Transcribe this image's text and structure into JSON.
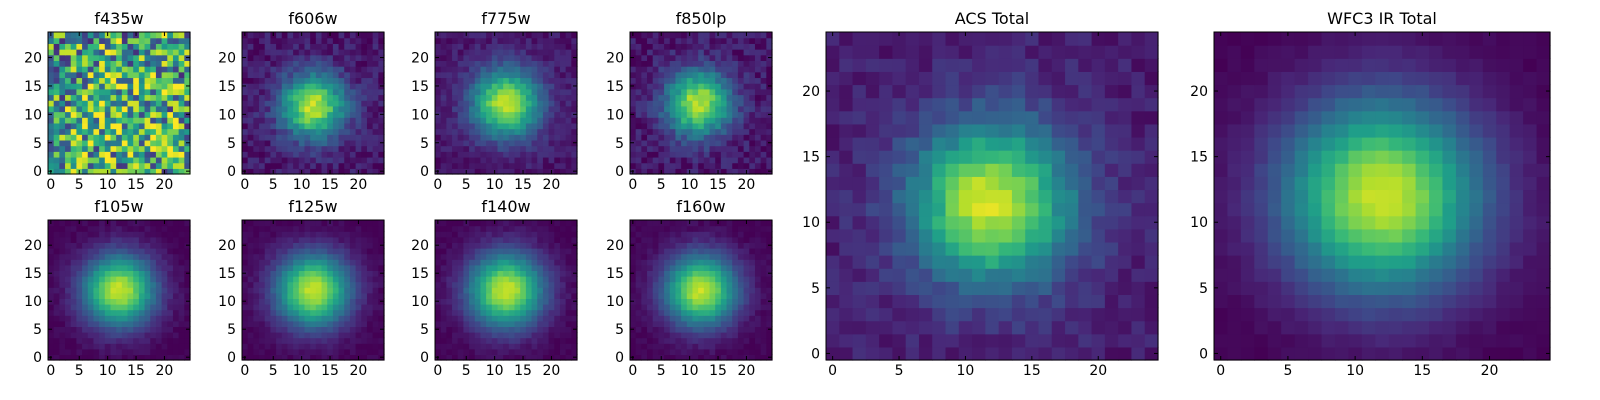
{
  "figure": {
    "colormap": "viridis",
    "colormap_stops": [
      "#440154",
      "#482878",
      "#3e4989",
      "#31688e",
      "#26828e",
      "#1f9e89",
      "#35b779",
      "#6ece58",
      "#b5de2b",
      "#fde725"
    ],
    "background_color": "#ffffff"
  },
  "chart_data": [
    {
      "type": "heatmap",
      "title": "f435w",
      "grid_size": 25,
      "xlim": [
        0,
        24
      ],
      "ylim": [
        0,
        24
      ],
      "x_ticks": [
        "0",
        "5",
        "10",
        "15",
        "20"
      ],
      "y_ticks": [
        "0",
        "5",
        "10",
        "15",
        "20"
      ],
      "xlabel": "",
      "ylabel": "",
      "peak_center": [
        12,
        12
      ],
      "noise_dominated": true,
      "value_range": [
        0,
        1
      ]
    },
    {
      "type": "heatmap",
      "title": "f606w",
      "grid_size": 25,
      "xlim": [
        0,
        24
      ],
      "ylim": [
        0,
        24
      ],
      "x_ticks": [
        "0",
        "5",
        "10",
        "15",
        "20"
      ],
      "y_ticks": [
        "0",
        "5",
        "10",
        "15",
        "20"
      ],
      "xlabel": "",
      "ylabel": "",
      "peak_center": [
        12,
        11.5
      ],
      "value_range": [
        0,
        1
      ]
    },
    {
      "type": "heatmap",
      "title": "f775w",
      "grid_size": 25,
      "xlim": [
        0,
        24
      ],
      "ylim": [
        0,
        24
      ],
      "x_ticks": [
        "0",
        "5",
        "10",
        "15",
        "20"
      ],
      "y_ticks": [
        "0",
        "5",
        "10",
        "15",
        "20"
      ],
      "xlabel": "",
      "ylabel": "",
      "peak_center": [
        12,
        12
      ],
      "value_range": [
        0,
        1
      ]
    },
    {
      "type": "heatmap",
      "title": "f850lp",
      "grid_size": 25,
      "xlim": [
        0,
        24
      ],
      "ylim": [
        0,
        24
      ],
      "x_ticks": [
        "0",
        "5",
        "10",
        "15",
        "20"
      ],
      "y_ticks": [
        "0",
        "5",
        "10",
        "15",
        "20"
      ],
      "xlabel": "",
      "ylabel": "",
      "peak_center": [
        11.5,
        12
      ],
      "value_range": [
        0,
        1
      ]
    },
    {
      "type": "heatmap",
      "title": "f105w",
      "grid_size": 25,
      "xlim": [
        0,
        24
      ],
      "ylim": [
        0,
        24
      ],
      "x_ticks": [
        "0",
        "5",
        "10",
        "15",
        "20"
      ],
      "y_ticks": [
        "0",
        "5",
        "10",
        "15",
        "20"
      ],
      "xlabel": "",
      "ylabel": "",
      "peak_center": [
        12,
        12
      ],
      "value_range": [
        0,
        1
      ]
    },
    {
      "type": "heatmap",
      "title": "f125w",
      "grid_size": 25,
      "xlim": [
        0,
        24
      ],
      "ylim": [
        0,
        24
      ],
      "x_ticks": [
        "0",
        "5",
        "10",
        "15",
        "20"
      ],
      "y_ticks": [
        "0",
        "5",
        "10",
        "15",
        "20"
      ],
      "xlabel": "",
      "ylabel": "",
      "peak_center": [
        12,
        12
      ],
      "value_range": [
        0,
        1
      ]
    },
    {
      "type": "heatmap",
      "title": "f140w",
      "grid_size": 25,
      "xlim": [
        0,
        24
      ],
      "ylim": [
        0,
        24
      ],
      "x_ticks": [
        "0",
        "5",
        "10",
        "15",
        "20"
      ],
      "y_ticks": [
        "0",
        "5",
        "10",
        "15",
        "20"
      ],
      "xlabel": "",
      "ylabel": "",
      "peak_center": [
        12,
        12
      ],
      "value_range": [
        0,
        1
      ]
    },
    {
      "type": "heatmap",
      "title": "f160w",
      "grid_size": 25,
      "xlim": [
        0,
        24
      ],
      "ylim": [
        0,
        24
      ],
      "x_ticks": [
        "0",
        "5",
        "10",
        "15",
        "20"
      ],
      "y_ticks": [
        "0",
        "5",
        "10",
        "15",
        "20"
      ],
      "xlabel": "",
      "ylabel": "",
      "peak_center": [
        12,
        12
      ],
      "value_range": [
        0,
        1
      ]
    },
    {
      "type": "heatmap",
      "title": "ACS Total",
      "grid_size": 25,
      "xlim": [
        0,
        24
      ],
      "ylim": [
        0,
        24
      ],
      "x_ticks": [
        "0",
        "5",
        "10",
        "15",
        "20"
      ],
      "y_ticks": [
        "0",
        "5",
        "10",
        "15",
        "20"
      ],
      "xlabel": "",
      "ylabel": "",
      "peak_center": [
        12,
        11.5
      ],
      "value_range": [
        0,
        1
      ]
    },
    {
      "type": "heatmap",
      "title": "WFC3 IR Total",
      "grid_size": 25,
      "xlim": [
        0,
        24
      ],
      "ylim": [
        0,
        24
      ],
      "x_ticks": [
        "0",
        "5",
        "10",
        "15",
        "20"
      ],
      "y_ticks": [
        "0",
        "5",
        "10",
        "15",
        "20"
      ],
      "xlabel": "",
      "ylabel": "",
      "peak_center": [
        12,
        12
      ],
      "value_range": [
        0,
        1
      ]
    }
  ]
}
